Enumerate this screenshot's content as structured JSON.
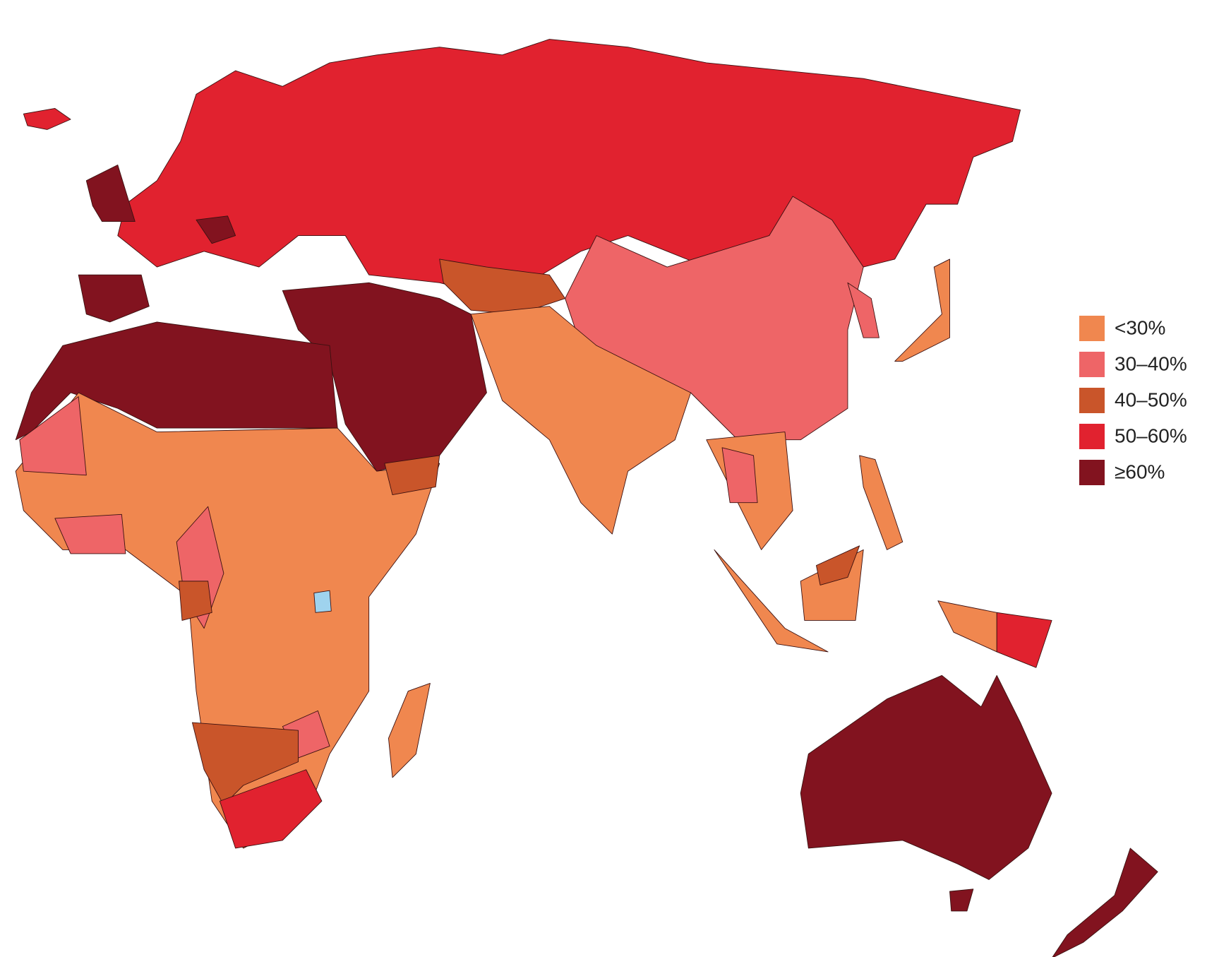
{
  "legend": {
    "items": [
      {
        "label": "<30%",
        "color": "#f0874f"
      },
      {
        "label": "30–40%",
        "color": "#ee6567"
      },
      {
        "label": "40–50%",
        "color": "#c9552a"
      },
      {
        "label": "50–60%",
        "color": "#e1222f"
      },
      {
        "label": "≥60%",
        "color": "#82131f"
      }
    ]
  }
}
